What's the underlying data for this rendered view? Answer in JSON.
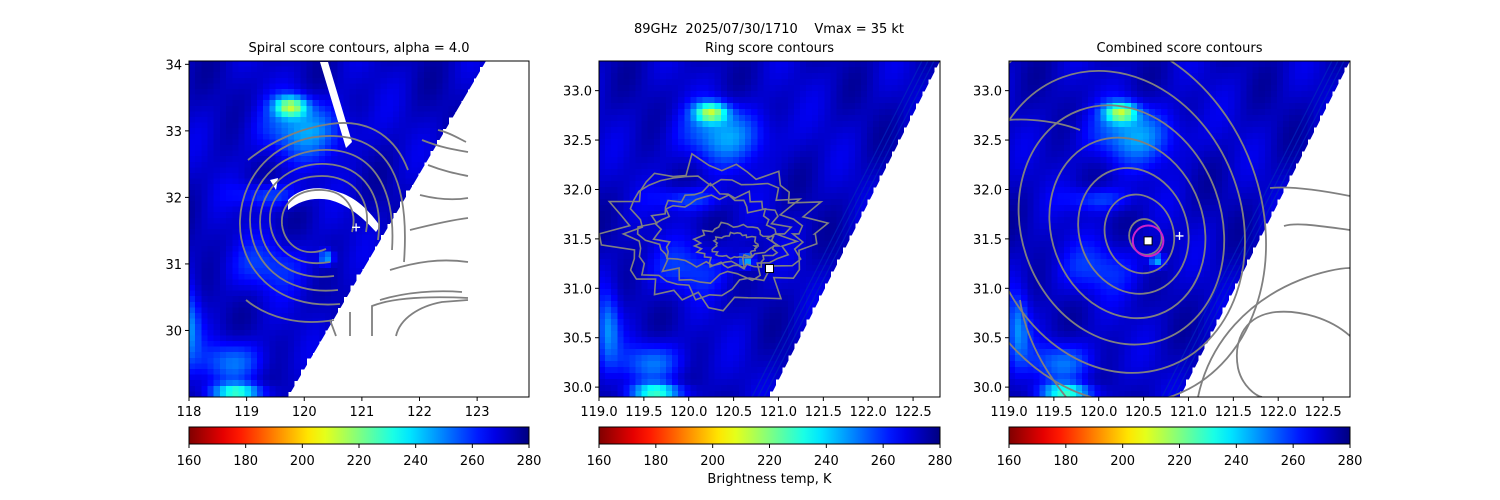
{
  "figure": {
    "suptitle_line1": "89GHz  2025/07/30/1710    Vmax = 35 kt",
    "colorbar_label": "Brightness temp, K"
  },
  "colors": {
    "contour": "#808080",
    "marker": "#ffffff",
    "ring": "#cc22cc",
    "missing": "#ffffff"
  },
  "colormap": {
    "name": "jet_r",
    "range": [
      160,
      280
    ],
    "ticks": [
      "160",
      "180",
      "200",
      "220",
      "240",
      "260",
      "280"
    ]
  },
  "chart_data": [
    {
      "type": "heatmap",
      "title": "Spiral score contours, alpha =  4.0",
      "xlim": [
        118,
        123.9
      ],
      "ylim": [
        29.0,
        34.05
      ],
      "xticks": [
        "118",
        "119",
        "120",
        "121",
        "122",
        "123"
      ],
      "yticks": [
        "30",
        "31",
        "32",
        "33",
        "34"
      ],
      "xtick_values": [
        118,
        119,
        120,
        121,
        122,
        123
      ],
      "ytick_values": [
        30,
        31,
        32,
        33,
        34
      ],
      "markers": [
        {
          "shape": "plus",
          "x": 120.9,
          "y": 31.55
        }
      ],
      "ring": null,
      "contour_style": "spiral"
    },
    {
      "type": "heatmap",
      "title": "Ring score contours",
      "xlim": [
        119.0,
        122.8
      ],
      "ylim": [
        29.9,
        33.3
      ],
      "xticks": [
        "119.0",
        "119.5",
        "120.0",
        "120.5",
        "121.0",
        "121.5",
        "122.0",
        "122.5"
      ],
      "yticks": [
        "30.0",
        "30.5",
        "31.0",
        "31.5",
        "32.0",
        "32.5",
        "33.0"
      ],
      "xtick_values": [
        119.0,
        119.5,
        120.0,
        120.5,
        121.0,
        121.5,
        122.0,
        122.5
      ],
      "ytick_values": [
        30.0,
        30.5,
        31.0,
        31.5,
        32.0,
        32.5,
        33.0
      ],
      "markers": [
        {
          "shape": "square",
          "x": 120.9,
          "y": 31.2
        }
      ],
      "ring": null,
      "contour_style": "ring"
    },
    {
      "type": "heatmap",
      "title": "Combined score contours",
      "xlim": [
        119.0,
        122.8
      ],
      "ylim": [
        29.9,
        33.3
      ],
      "xticks": [
        "119.0",
        "119.5",
        "120.0",
        "120.5",
        "121.0",
        "121.5",
        "122.0",
        "122.5"
      ],
      "yticks": [
        "30.0",
        "30.5",
        "31.0",
        "31.5",
        "32.0",
        "32.5",
        "33.0"
      ],
      "xtick_values": [
        119.0,
        119.5,
        120.0,
        120.5,
        121.0,
        121.5,
        122.0,
        122.5
      ],
      "ytick_values": [
        30.0,
        30.5,
        31.0,
        31.5,
        32.0,
        32.5,
        33.0
      ],
      "markers": [
        {
          "shape": "square",
          "x": 120.55,
          "y": 31.48
        },
        {
          "shape": "plus",
          "x": 120.9,
          "y": 31.53
        }
      ],
      "ring": {
        "x": 120.55,
        "y": 31.48,
        "r_deg": 0.17
      },
      "contour_style": "combined"
    }
  ]
}
